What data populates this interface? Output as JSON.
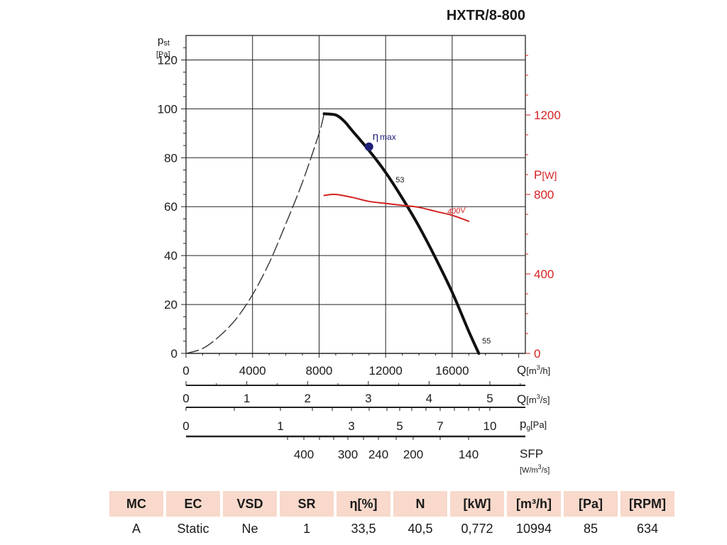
{
  "chart_data": {
    "type": "line",
    "title": "HXTR/8-800",
    "left_axis": {
      "label_main": "p",
      "label_sub": "st",
      "unit": "[Pa]",
      "min": 0,
      "max": 130,
      "ticks": [
        0,
        20,
        40,
        60,
        80,
        100,
        120
      ]
    },
    "right_axis": {
      "label": "P",
      "unit": "[W]",
      "color": "#d42222",
      "min": 0,
      "max": 1600,
      "ticks": [
        0,
        400,
        800,
        1200
      ]
    },
    "x_axes": [
      {
        "name": "Q",
        "unit": "[m",
        "unit_sup": "3",
        "unit_end": "/h]",
        "ticks": [
          "0",
          "4000",
          "8000",
          "12000",
          "16000"
        ],
        "values": [
          0,
          4000,
          8000,
          12000,
          16000
        ]
      },
      {
        "name": "Q",
        "unit": "[m",
        "unit_sup": "3",
        "unit_end": "/s]",
        "ticks": [
          "0",
          "1",
          "2",
          "3",
          "4",
          "5"
        ],
        "values": [
          0,
          1,
          2,
          3,
          4,
          5
        ]
      },
      {
        "name": "p",
        "name_sub": "g",
        "unit": "[Pa]",
        "ticks": [
          "0",
          "1",
          "3",
          "5",
          "7",
          "10"
        ]
      },
      {
        "name": "SFP",
        "unit": "[W/m",
        "unit_sup": "3",
        "unit_end": "/s]",
        "ticks": [
          "400",
          "300",
          "240",
          "200",
          "140"
        ]
      }
    ],
    "xlim": [
      0,
      20400
    ],
    "series": [
      {
        "kind": "pressure-dashed",
        "color": "#333333",
        "x": [
          0,
          1000,
          2000,
          3000,
          4000,
          5000,
          6000,
          7000,
          8000,
          8300
        ],
        "y": [
          0,
          2,
          7,
          14,
          24,
          37,
          53,
          70,
          90,
          98
        ]
      },
      {
        "kind": "pressure",
        "color": "#111111",
        "x": [
          8300,
          9000,
          9500,
          10000,
          11000,
          12000,
          13000,
          14000,
          15000,
          16000,
          17000,
          17600
        ],
        "y": [
          98,
          97.5,
          95,
          91,
          83,
          74,
          63.5,
          52,
          39,
          25,
          9,
          0
        ]
      },
      {
        "kind": "power",
        "name": "400V",
        "color": "#d42222",
        "x": [
          8300,
          9000,
          10000,
          11000,
          12000,
          13000,
          14000,
          15000,
          16000,
          17000
        ],
        "y": [
          795,
          800,
          785,
          765,
          755,
          745,
          735,
          715,
          695,
          665
        ]
      }
    ],
    "points": [
      {
        "label": "η",
        "label_sub": "max",
        "x": 11000,
        "y": 84.5,
        "color": "#1f1f78"
      }
    ],
    "annotations": [
      {
        "text": "53",
        "x": 12600,
        "y": 70
      },
      {
        "text": "55",
        "x": 17800,
        "y": 4
      }
    ],
    "grid": true
  },
  "table": {
    "headers": [
      "MC",
      "EC",
      "VSD",
      "SR",
      "η[%]",
      "N",
      "[kW]",
      "[m³/h]",
      "[Pa]",
      "[RPM]"
    ],
    "values": [
      "A",
      "Static",
      "Ne",
      "1",
      "33,5",
      "40,5",
      "0,772",
      "10994",
      "85",
      "634"
    ]
  }
}
